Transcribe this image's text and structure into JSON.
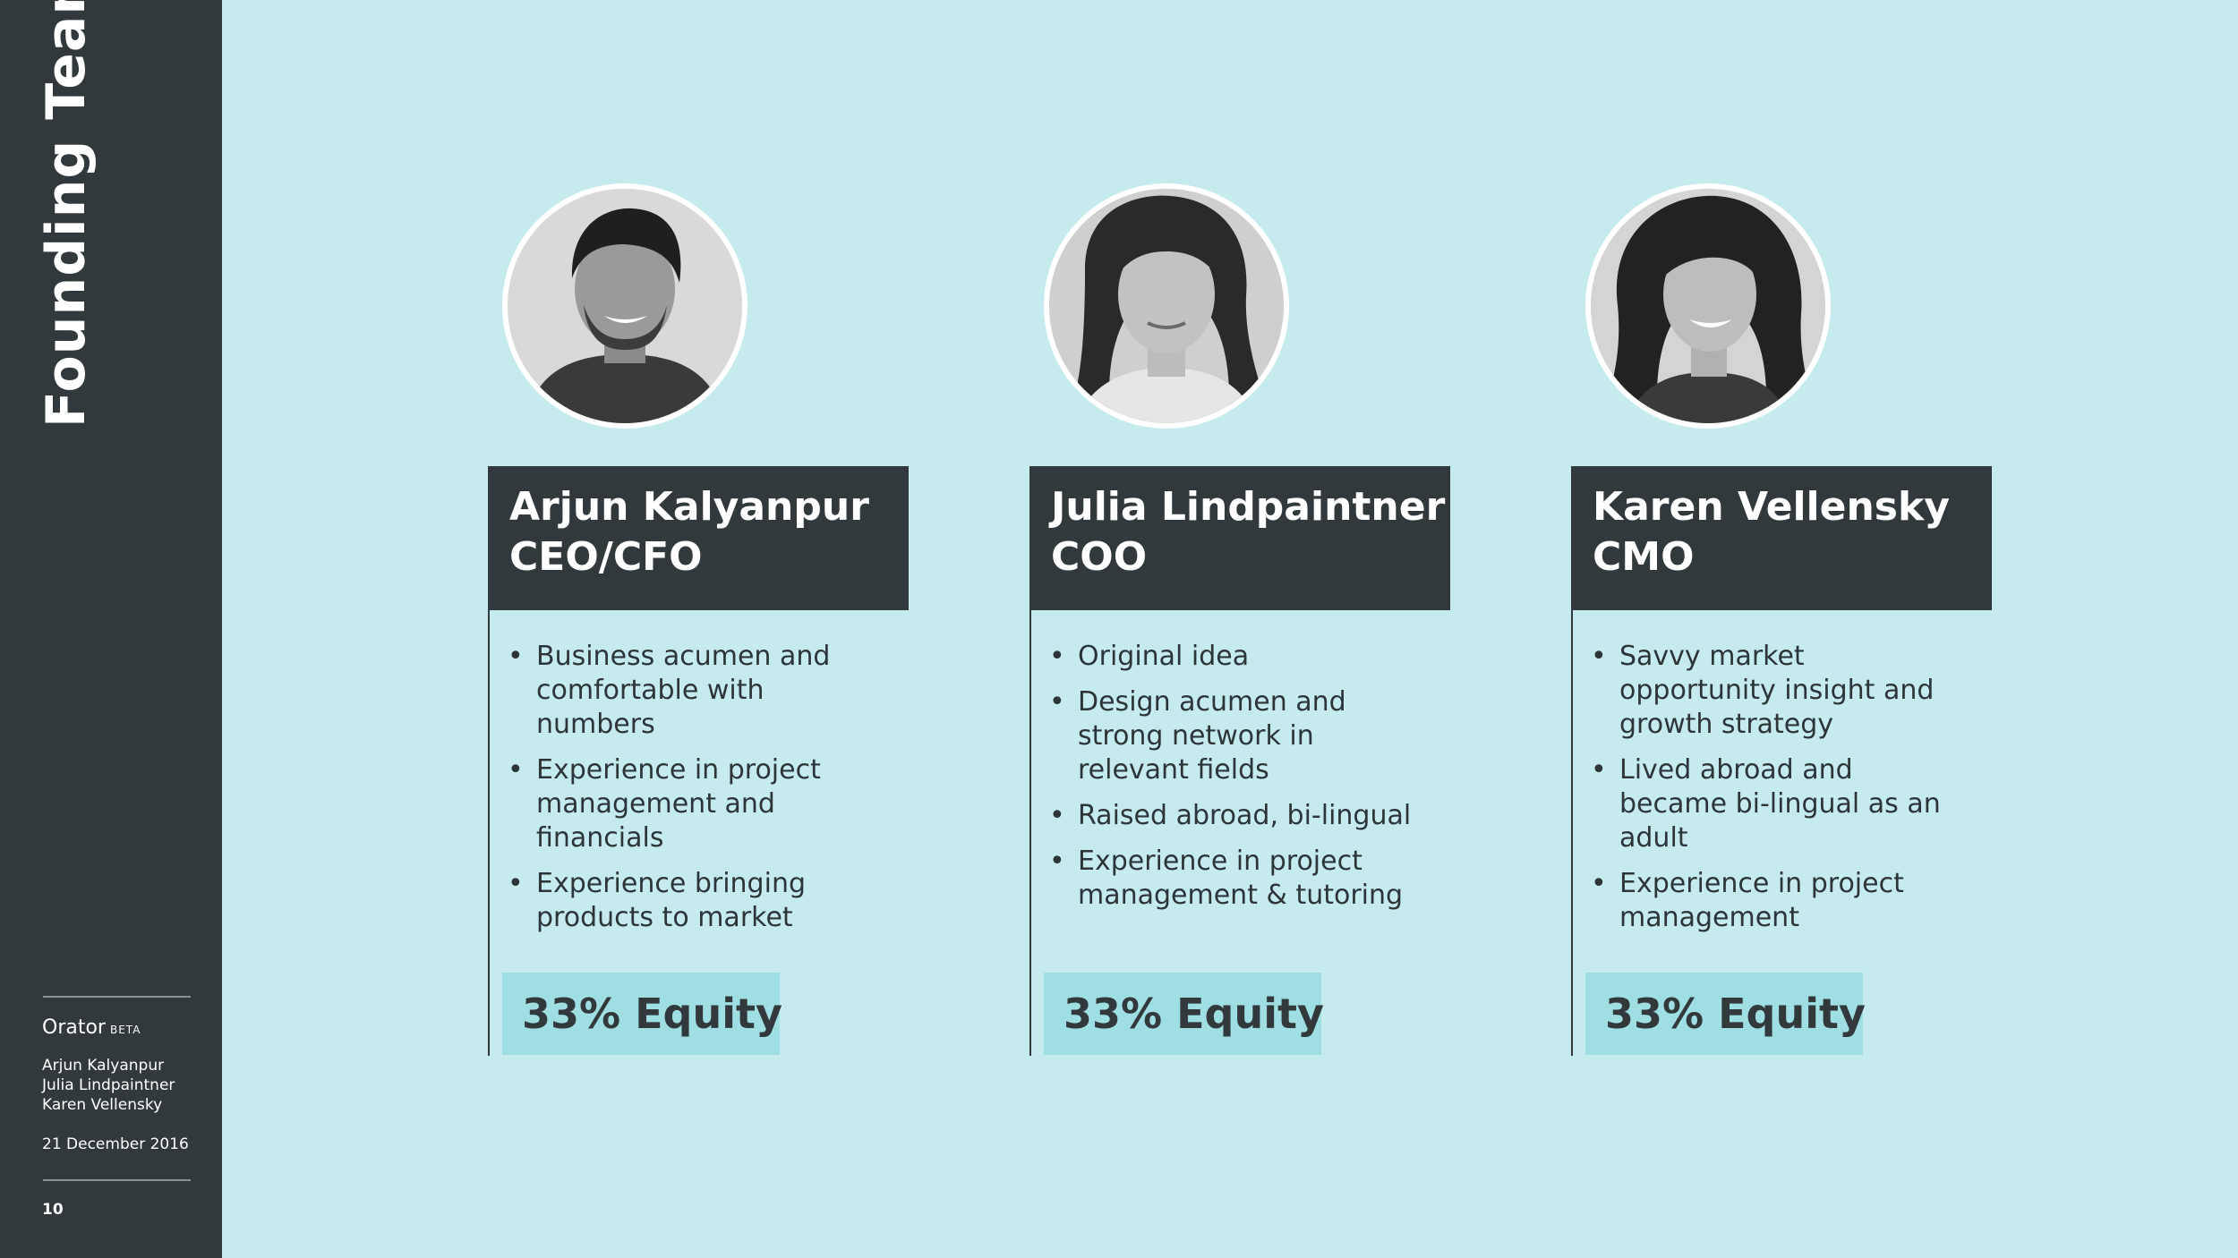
{
  "sidebar": {
    "title": "Founding Team",
    "brand": "Orator",
    "brand_tag": "BETA",
    "names": [
      "Arjun Kalyanpur",
      "Julia Lindpaintner",
      "Karen Vellensky"
    ],
    "date": "21 December 2016",
    "page_number": "10"
  },
  "members": [
    {
      "name": "Arjun Kalyanpur",
      "role": "CEO/CFO",
      "bullets": [
        "Business acumen and comfortable with numbers",
        "Experience in project management and financials",
        "Experience bringing products to market"
      ],
      "equity": "33% Equity"
    },
    {
      "name": "Julia Lindpaintner",
      "role": "COO",
      "bullets": [
        "Original idea",
        "Design acumen and strong network in relevant fields",
        "Raised abroad, bi-lingual",
        "Experience in project management & tutoring"
      ],
      "equity": "33% Equity"
    },
    {
      "name": "Karen Vellensky",
      "role": "CMO",
      "bullets": [
        "Savvy market opportunity insight and growth strategy",
        "Lived abroad and became bi-lingual as an adult",
        "Experience in project management"
      ],
      "equity": "33% Equity"
    }
  ],
  "colors": {
    "background": "#c5ebee",
    "dark": "#32393d",
    "equity_box": "#9fdfe4"
  }
}
